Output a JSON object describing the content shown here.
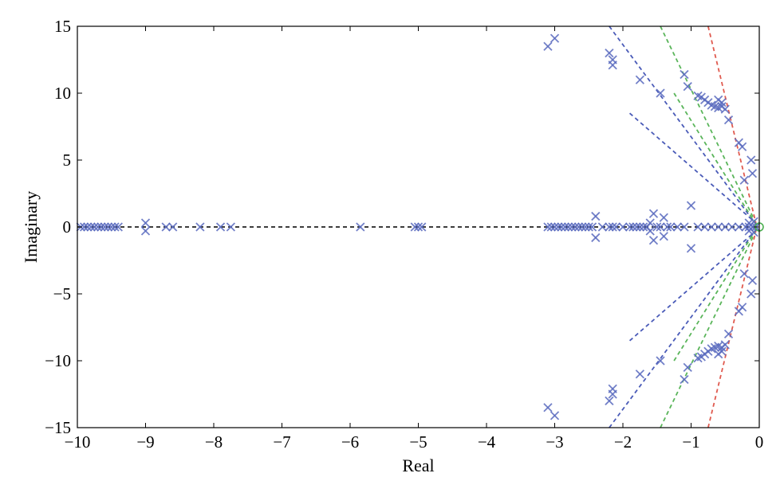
{
  "chart_data": {
    "type": "scatter",
    "xlabel": "Real",
    "ylabel": "Imaginary",
    "xlim": [
      -10,
      0
    ],
    "ylim": [
      -15,
      15
    ],
    "xticks": [
      "−10",
      "−9",
      "−8",
      "−7",
      "−6",
      "−5",
      "−4",
      "−3",
      "−2",
      "−1",
      "0"
    ],
    "yticks": [
      "15",
      "10",
      "5",
      "0",
      "−5",
      "−10",
      "−15"
    ],
    "grid": false,
    "marker_color": "#5a6bbf",
    "zero_marker_color": "#4caf50",
    "series": [
      {
        "marker": "x",
        "points": [
          [
            -9.95,
            0
          ],
          [
            -9.9,
            0
          ],
          [
            -9.85,
            0
          ],
          [
            -9.8,
            0
          ],
          [
            -9.75,
            0
          ],
          [
            -9.7,
            0
          ],
          [
            -9.65,
            0
          ],
          [
            -9.6,
            0
          ],
          [
            -9.55,
            0
          ],
          [
            -9.5,
            0
          ],
          [
            -9.45,
            0
          ],
          [
            -9.4,
            0
          ],
          [
            -9.0,
            0.3
          ],
          [
            -9.0,
            -0.3
          ],
          [
            -8.7,
            0
          ],
          [
            -8.6,
            0
          ],
          [
            -8.2,
            0
          ],
          [
            -7.9,
            0
          ],
          [
            -7.75,
            0
          ],
          [
            -5.85,
            0
          ],
          [
            -5.05,
            0
          ],
          [
            -5.0,
            0
          ],
          [
            -4.95,
            0
          ],
          [
            -3.1,
            0
          ],
          [
            -3.05,
            0
          ],
          [
            -3.0,
            0
          ],
          [
            -2.95,
            0
          ],
          [
            -2.9,
            0
          ],
          [
            -2.85,
            0
          ],
          [
            -2.8,
            0
          ],
          [
            -2.75,
            0
          ],
          [
            -2.7,
            0
          ],
          [
            -2.65,
            0
          ],
          [
            -2.6,
            0
          ],
          [
            -2.55,
            0
          ],
          [
            -2.5,
            0
          ],
          [
            -2.45,
            0
          ],
          [
            -2.4,
            0.8
          ],
          [
            -2.4,
            -0.8
          ],
          [
            -2.3,
            0
          ],
          [
            -2.2,
            0
          ],
          [
            -2.15,
            0
          ],
          [
            -2.1,
            0
          ],
          [
            -2.0,
            0
          ],
          [
            -1.9,
            0
          ],
          [
            -1.85,
            0
          ],
          [
            -1.8,
            0
          ],
          [
            -1.75,
            0
          ],
          [
            -1.7,
            0
          ],
          [
            -1.65,
            0
          ],
          [
            -1.6,
            0.3
          ],
          [
            -1.6,
            -0.3
          ],
          [
            -1.55,
            1.0
          ],
          [
            -1.55,
            -1.0
          ],
          [
            -1.5,
            0
          ],
          [
            -1.45,
            0
          ],
          [
            -1.4,
            0.7
          ],
          [
            -1.4,
            -0.7
          ],
          [
            -1.35,
            0
          ],
          [
            -1.3,
            0
          ],
          [
            -1.2,
            0
          ],
          [
            -1.1,
            0
          ],
          [
            -1.0,
            1.6
          ],
          [
            -1.0,
            -1.6
          ],
          [
            -0.9,
            0
          ],
          [
            -0.8,
            0
          ],
          [
            -0.7,
            0
          ],
          [
            -0.6,
            0
          ],
          [
            -0.5,
            0
          ],
          [
            -0.4,
            0
          ],
          [
            -0.3,
            0
          ],
          [
            -0.2,
            0
          ],
          [
            -0.15,
            0
          ],
          [
            -0.1,
            0
          ],
          [
            -0.05,
            0
          ],
          [
            -0.15,
            0.3
          ],
          [
            -0.15,
            -0.3
          ],
          [
            -0.08,
            0.4
          ],
          [
            -0.08,
            -0.4
          ],
          [
            -3.1,
            13.5
          ],
          [
            -3.0,
            14.1
          ],
          [
            -3.1,
            -13.5
          ],
          [
            -3.0,
            -14.1
          ],
          [
            -2.2,
            13.0
          ],
          [
            -2.15,
            12.5
          ],
          [
            -2.15,
            12.1
          ],
          [
            -2.2,
            -13.0
          ],
          [
            -2.15,
            -12.5
          ],
          [
            -2.15,
            -12.1
          ],
          [
            -1.75,
            11.0
          ],
          [
            -1.75,
            -11.0
          ],
          [
            -1.45,
            10.0
          ],
          [
            -1.45,
            -10.0
          ],
          [
            -1.1,
            11.4
          ],
          [
            -1.05,
            10.5
          ],
          [
            -1.1,
            -11.4
          ],
          [
            -1.05,
            -10.5
          ],
          [
            -0.9,
            9.8
          ],
          [
            -0.85,
            9.7
          ],
          [
            -0.8,
            9.5
          ],
          [
            -0.75,
            9.3
          ],
          [
            -0.7,
            9.1
          ],
          [
            -0.65,
            9.0
          ],
          [
            -0.6,
            8.9
          ],
          [
            -0.55,
            9.0
          ],
          [
            -0.5,
            8.8
          ],
          [
            -0.6,
            9.5
          ],
          [
            -0.55,
            9.3
          ],
          [
            -0.9,
            -9.8
          ],
          [
            -0.85,
            -9.7
          ],
          [
            -0.8,
            -9.5
          ],
          [
            -0.75,
            -9.3
          ],
          [
            -0.7,
            -9.1
          ],
          [
            -0.65,
            -9.0
          ],
          [
            -0.6,
            -8.9
          ],
          [
            -0.55,
            -9.0
          ],
          [
            -0.5,
            -8.8
          ],
          [
            -0.6,
            -9.5
          ],
          [
            -0.55,
            -9.3
          ],
          [
            -0.45,
            8.0
          ],
          [
            -0.45,
            -8.0
          ],
          [
            -0.3,
            6.3
          ],
          [
            -0.25,
            6.0
          ],
          [
            -0.3,
            -6.3
          ],
          [
            -0.25,
            -6.0
          ],
          [
            -0.12,
            5.0
          ],
          [
            -0.1,
            4.0
          ],
          [
            -0.12,
            -5.0
          ],
          [
            -0.1,
            -4.0
          ],
          [
            -0.22,
            3.5
          ],
          [
            -0.22,
            -3.5
          ]
        ]
      },
      {
        "marker": "o",
        "points": [
          [
            0,
            0
          ]
        ]
      }
    ],
    "lines": [
      {
        "color": "#4a5bb8",
        "style": "dashed",
        "points": [
          [
            -2.2,
            15
          ],
          [
            -0.05,
            0.2
          ]
        ]
      },
      {
        "color": "#4a5bb8",
        "style": "dashed",
        "points": [
          [
            -2.2,
            -15
          ],
          [
            -0.05,
            -0.2
          ]
        ]
      },
      {
        "color": "#4a5bb8",
        "style": "dashed",
        "points": [
          [
            -1.9,
            8.5
          ],
          [
            -0.05,
            0.3
          ]
        ]
      },
      {
        "color": "#4a5bb8",
        "style": "dashed",
        "points": [
          [
            -1.9,
            -8.5
          ],
          [
            -0.05,
            -0.3
          ]
        ]
      },
      {
        "color": "#5ab55a",
        "style": "dashed",
        "points": [
          [
            -1.45,
            15
          ],
          [
            -0.05,
            0.3
          ]
        ]
      },
      {
        "color": "#5ab55a",
        "style": "dashed",
        "points": [
          [
            -1.45,
            -15
          ],
          [
            -0.05,
            -0.3
          ]
        ]
      },
      {
        "color": "#5ab55a",
        "style": "dashed",
        "points": [
          [
            -1.25,
            10
          ],
          [
            -0.05,
            0.2
          ]
        ]
      },
      {
        "color": "#5ab55a",
        "style": "dashed",
        "points": [
          [
            -1.25,
            -10
          ],
          [
            -0.05,
            -0.2
          ]
        ]
      },
      {
        "color": "#e05a4f",
        "style": "dashed",
        "points": [
          [
            -0.75,
            15
          ],
          [
            -0.05,
            0.3
          ]
        ]
      },
      {
        "color": "#e05a4f",
        "style": "dashed",
        "points": [
          [
            -0.75,
            -15
          ],
          [
            -0.05,
            -0.3
          ]
        ]
      },
      {
        "color": "#222222",
        "style": "dashed",
        "points": [
          [
            -10,
            0
          ],
          [
            0,
            0
          ]
        ]
      }
    ]
  }
}
